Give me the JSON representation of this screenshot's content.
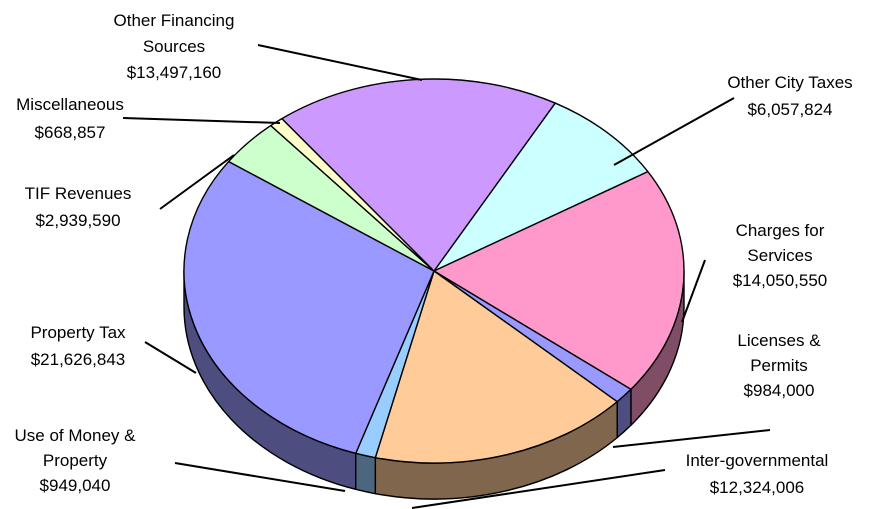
{
  "chart_data": {
    "type": "pie",
    "title": "",
    "slices": [
      {
        "category": "Other City Taxes",
        "label_lines": [
          "Other City Taxes"
        ],
        "value_label": "$6,057,824",
        "value": 6057824,
        "color": "#ccffff"
      },
      {
        "category": "Charges for Services",
        "label_lines": [
          "Charges for",
          "Services"
        ],
        "value_label": "$14,050,550",
        "value": 14050550,
        "color": "#ff99cc"
      },
      {
        "category": "Licenses & Permits",
        "label_lines": [
          "Licenses &",
          "Permits"
        ],
        "value_label": "$984,000",
        "value": 984000,
        "color": "#9999ff"
      },
      {
        "category": "Inter-governmental",
        "label_lines": [
          "Inter-governmental"
        ],
        "value_label": "$12,324,006",
        "value": 12324006,
        "color": "#ffcc99"
      },
      {
        "category": "Use of Money & Property",
        "label_lines": [
          "Use of Money  &",
          "Property"
        ],
        "value_label": "$949,040",
        "value": 949040,
        "color": "#99ccff"
      },
      {
        "category": "Property Tax",
        "label_lines": [
          "Property Tax"
        ],
        "value_label": "$21,626,843",
        "value": 21626843,
        "color": "#9999ff"
      },
      {
        "category": "TIF Revenues",
        "label_lines": [
          "TIF Revenues"
        ],
        "value_label": "$2,939,590",
        "value": 2939590,
        "color": "#ccffcc"
      },
      {
        "category": "Miscellaneous",
        "label_lines": [
          "Miscellaneous"
        ],
        "value_label": "$668,857",
        "value": 668857,
        "color": "#ffffcc"
      },
      {
        "category": "Other Financing Sources",
        "label_lines": [
          "Other Financing",
          "Sources"
        ],
        "value_label": "$13,497,160",
        "value": 13497160,
        "color": "#cc99ff"
      }
    ],
    "legend": "none",
    "style": "3d-exploded-labels-with-leader-lines"
  }
}
